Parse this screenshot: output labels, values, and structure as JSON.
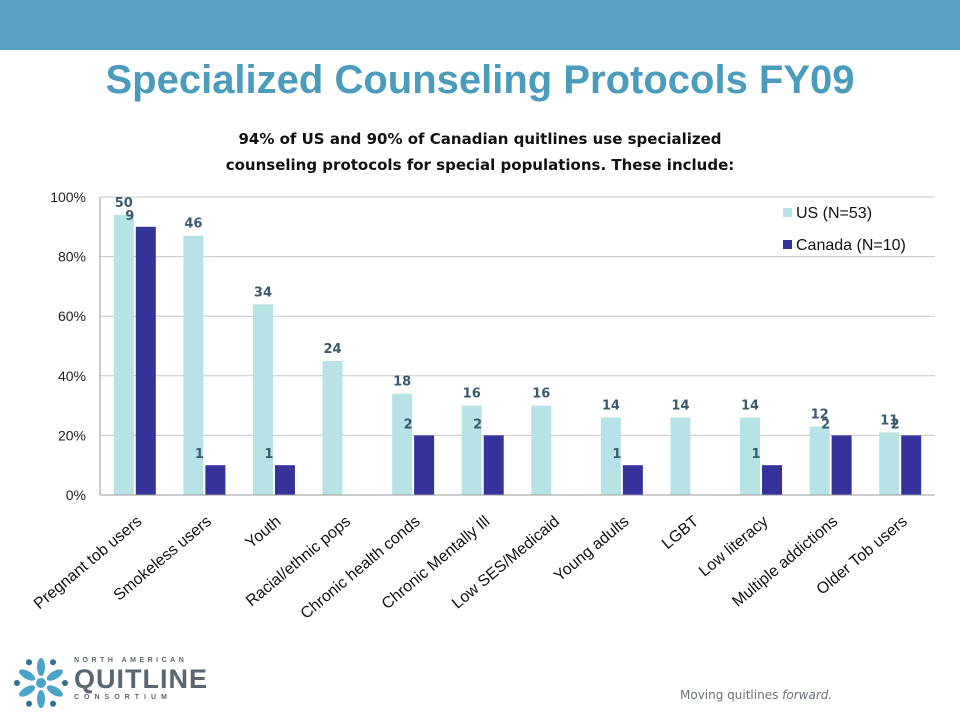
{
  "title": "Specialized Counseling Protocols FY09",
  "subtitle_line1": "94% of US and 90% of Canadian quitlines use specialized",
  "subtitle_line2": "counseling protocols for special populations.  These include:",
  "colors": {
    "us": "#b7e2e6",
    "canada": "#35339b",
    "label": "#3b5a6e",
    "header": "#5aa0bf",
    "title": "#4b9bbd"
  },
  "chart_data": {
    "type": "bar",
    "categories": [
      "Pregnant tob users",
      "Smokeless users",
      "Youth",
      "Racial/ethnic pops",
      "Chronic health conds",
      "Chronic Mentally Ill",
      "Low SES/Medicaid",
      "Young adults",
      "LGBT",
      "Low literacy",
      "Multiple addictions",
      "Older Tob users"
    ],
    "series": [
      {
        "name": "US (N=53)",
        "values": [
          94,
          87,
          64,
          45,
          34,
          30,
          30,
          26,
          26,
          26,
          23,
          21
        ],
        "labels": [
          "50",
          "46",
          "34",
          "24",
          "18",
          "16",
          "16",
          "14",
          "14",
          "14",
          "12",
          "11"
        ]
      },
      {
        "name": "Canada (N=10)",
        "values": [
          90,
          10,
          10,
          null,
          20,
          20,
          null,
          10,
          null,
          10,
          20,
          20
        ],
        "labels": [
          "9",
          "1",
          "1",
          "",
          "2",
          "2",
          "",
          "1",
          "",
          "1",
          "2",
          "2"
        ]
      }
    ],
    "yticks": [
      "0%",
      "20%",
      "40%",
      "60%",
      "80%",
      "100%"
    ],
    "ylim": [
      0,
      100
    ],
    "grid": true,
    "legend": "top-right"
  },
  "logo": {
    "top": "NORTH AMERICAN",
    "middle": "QUITLINE",
    "bottom": "CONSORTIUM"
  },
  "tagline_start": "Moving quitlines ",
  "tagline_emph": "forward."
}
